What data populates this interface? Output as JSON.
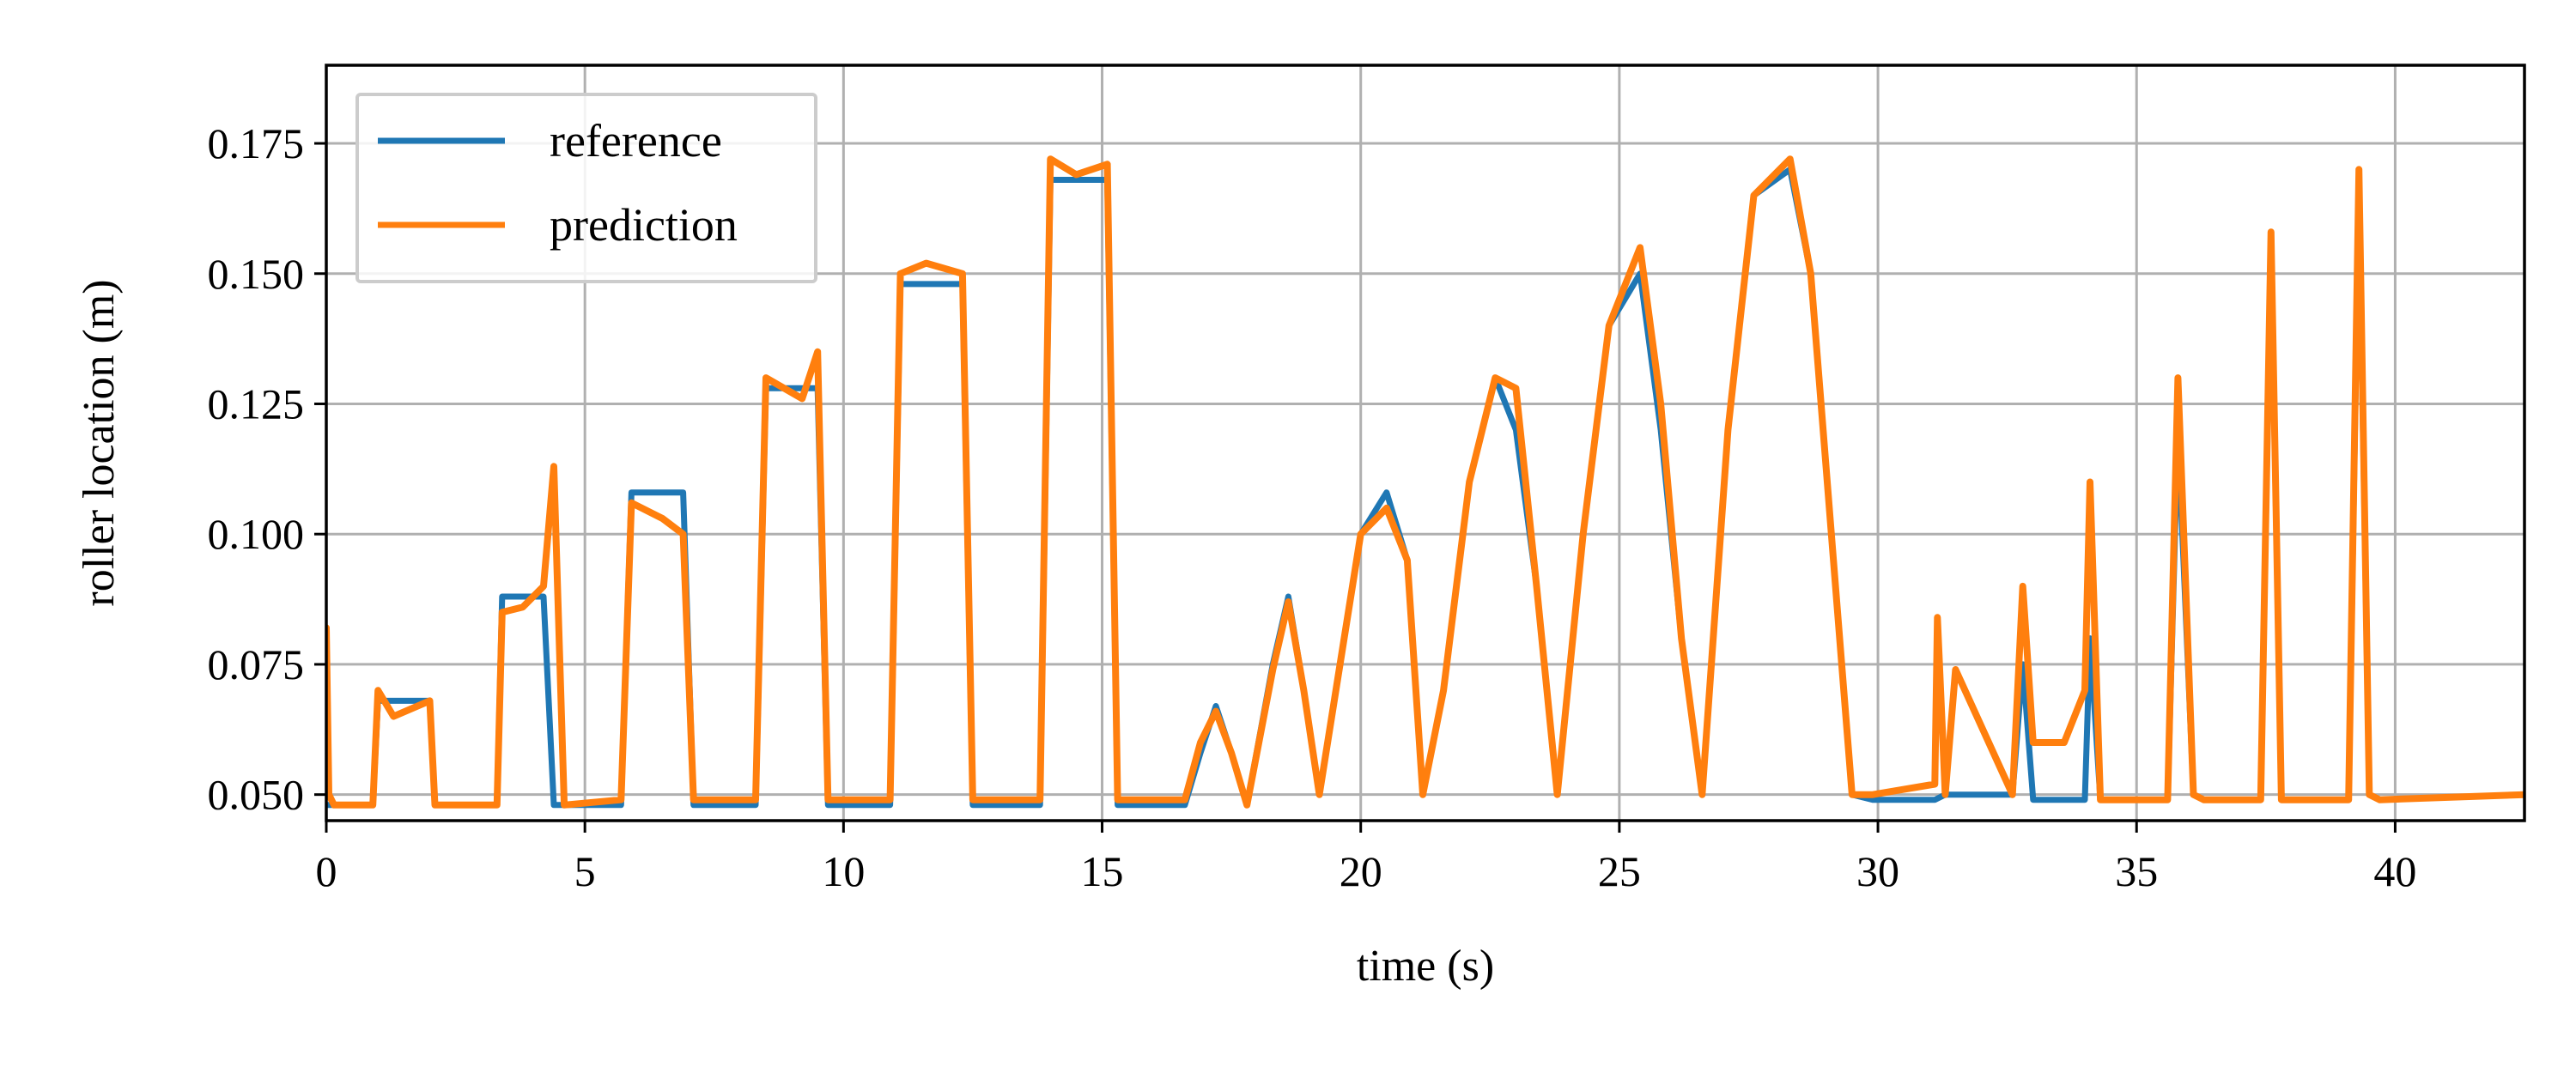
{
  "chart_data": {
    "type": "line",
    "xlabel": "time (s)",
    "ylabel": "roller location (m)",
    "xlim": [
      0,
      42.5
    ],
    "ylim": [
      0.045,
      0.19
    ],
    "xticks": [
      0,
      5,
      10,
      15,
      20,
      25,
      30,
      35,
      40
    ],
    "yticks": [
      0.05,
      0.075,
      0.1,
      0.125,
      0.15,
      0.175
    ],
    "xtick_labels": [
      "0",
      "5",
      "10",
      "15",
      "20",
      "25",
      "30",
      "35",
      "40"
    ],
    "ytick_labels": [
      "0.050",
      "0.075",
      "0.100",
      "0.125",
      "0.150",
      "0.175"
    ],
    "grid": true,
    "legend_position": "top-left",
    "series": [
      {
        "name": "reference",
        "color": "#1f77b4",
        "x": [
          0,
          0.9,
          1.0,
          2.0,
          2.1,
          3.3,
          3.4,
          4.2,
          4.4,
          5.7,
          5.9,
          6.9,
          7.1,
          8.3,
          8.5,
          9.5,
          9.7,
          10.9,
          11.1,
          12.3,
          12.5,
          13.8,
          14.0,
          15.1,
          15.3,
          16.6,
          16.9,
          17.2,
          17.5,
          17.8,
          18.3,
          18.6,
          18.9,
          19.2,
          19.6,
          20.0,
          20.5,
          20.9,
          21.2,
          21.6,
          22.1,
          22.6,
          23.0,
          23.4,
          23.8,
          24.3,
          24.8,
          25.4,
          25.8,
          26.2,
          26.6,
          27.1,
          27.6,
          28.3,
          28.7,
          29.1,
          29.5,
          29.9,
          30.5,
          31.1,
          31.3,
          32.6,
          32.8,
          33.0,
          34.0,
          34.1,
          34.3,
          35.6,
          35.8,
          36.1,
          36.3,
          37.4,
          37.6,
          37.8,
          38.0,
          39.1,
          39.3,
          39.5,
          39.7,
          42.5
        ],
        "y": [
          0.048,
          0.048,
          0.068,
          0.068,
          0.048,
          0.048,
          0.088,
          0.088,
          0.048,
          0.048,
          0.108,
          0.108,
          0.048,
          0.048,
          0.128,
          0.128,
          0.048,
          0.048,
          0.148,
          0.148,
          0.048,
          0.048,
          0.168,
          0.168,
          0.048,
          0.048,
          0.058,
          0.067,
          0.058,
          0.048,
          0.075,
          0.088,
          0.07,
          0.05,
          0.075,
          0.1,
          0.108,
          0.095,
          0.05,
          0.07,
          0.11,
          0.13,
          0.12,
          0.09,
          0.05,
          0.1,
          0.14,
          0.15,
          0.12,
          0.08,
          0.05,
          0.12,
          0.165,
          0.17,
          0.15,
          0.1,
          0.05,
          0.049,
          0.049,
          0.049,
          0.05,
          0.05,
          0.075,
          0.049,
          0.049,
          0.08,
          0.049,
          0.049,
          0.12,
          0.05,
          0.049,
          0.049,
          0.155,
          0.049,
          0.049,
          0.049,
          0.165,
          0.05,
          0.049,
          0.05
        ]
      },
      {
        "name": "prediction",
        "color": "#ff7f0e",
        "x": [
          0,
          0.05,
          0.15,
          0.9,
          1.0,
          1.3,
          2.0,
          2.1,
          3.3,
          3.4,
          3.8,
          4.2,
          4.4,
          4.6,
          5.7,
          5.9,
          6.5,
          6.9,
          7.1,
          8.3,
          8.5,
          9.2,
          9.5,
          9.7,
          10.9,
          11.1,
          11.6,
          12.3,
          12.5,
          13.8,
          14.0,
          14.5,
          15.1,
          15.3,
          16.6,
          16.9,
          17.2,
          17.5,
          17.8,
          18.3,
          18.6,
          18.9,
          19.2,
          19.6,
          20.0,
          20.5,
          20.9,
          21.2,
          21.6,
          22.1,
          22.6,
          23.0,
          23.4,
          23.8,
          24.3,
          24.8,
          25.4,
          25.8,
          26.2,
          26.6,
          27.1,
          27.6,
          28.3,
          28.7,
          29.1,
          29.5,
          29.9,
          30.5,
          31.1,
          31.15,
          31.3,
          31.5,
          32.6,
          32.8,
          33.0,
          33.6,
          34.0,
          34.1,
          34.3,
          35.6,
          35.8,
          36.1,
          36.3,
          37.4,
          37.6,
          37.8,
          38.0,
          39.1,
          39.3,
          39.5,
          39.7,
          42.5
        ],
        "y": [
          0.082,
          0.05,
          0.048,
          0.048,
          0.07,
          0.065,
          0.068,
          0.048,
          0.048,
          0.085,
          0.086,
          0.09,
          0.113,
          0.048,
          0.049,
          0.106,
          0.103,
          0.1,
          0.049,
          0.049,
          0.13,
          0.126,
          0.135,
          0.049,
          0.049,
          0.15,
          0.152,
          0.15,
          0.049,
          0.049,
          0.172,
          0.169,
          0.171,
          0.049,
          0.049,
          0.06,
          0.066,
          0.058,
          0.048,
          0.074,
          0.087,
          0.07,
          0.05,
          0.075,
          0.1,
          0.105,
          0.095,
          0.05,
          0.07,
          0.11,
          0.13,
          0.128,
          0.09,
          0.05,
          0.1,
          0.14,
          0.155,
          0.125,
          0.08,
          0.05,
          0.12,
          0.165,
          0.172,
          0.15,
          0.1,
          0.05,
          0.05,
          0.051,
          0.052,
          0.084,
          0.05,
          0.074,
          0.05,
          0.09,
          0.06,
          0.06,
          0.07,
          0.11,
          0.049,
          0.049,
          0.13,
          0.05,
          0.049,
          0.049,
          0.158,
          0.049,
          0.049,
          0.049,
          0.17,
          0.05,
          0.049,
          0.05
        ]
      }
    ]
  }
}
